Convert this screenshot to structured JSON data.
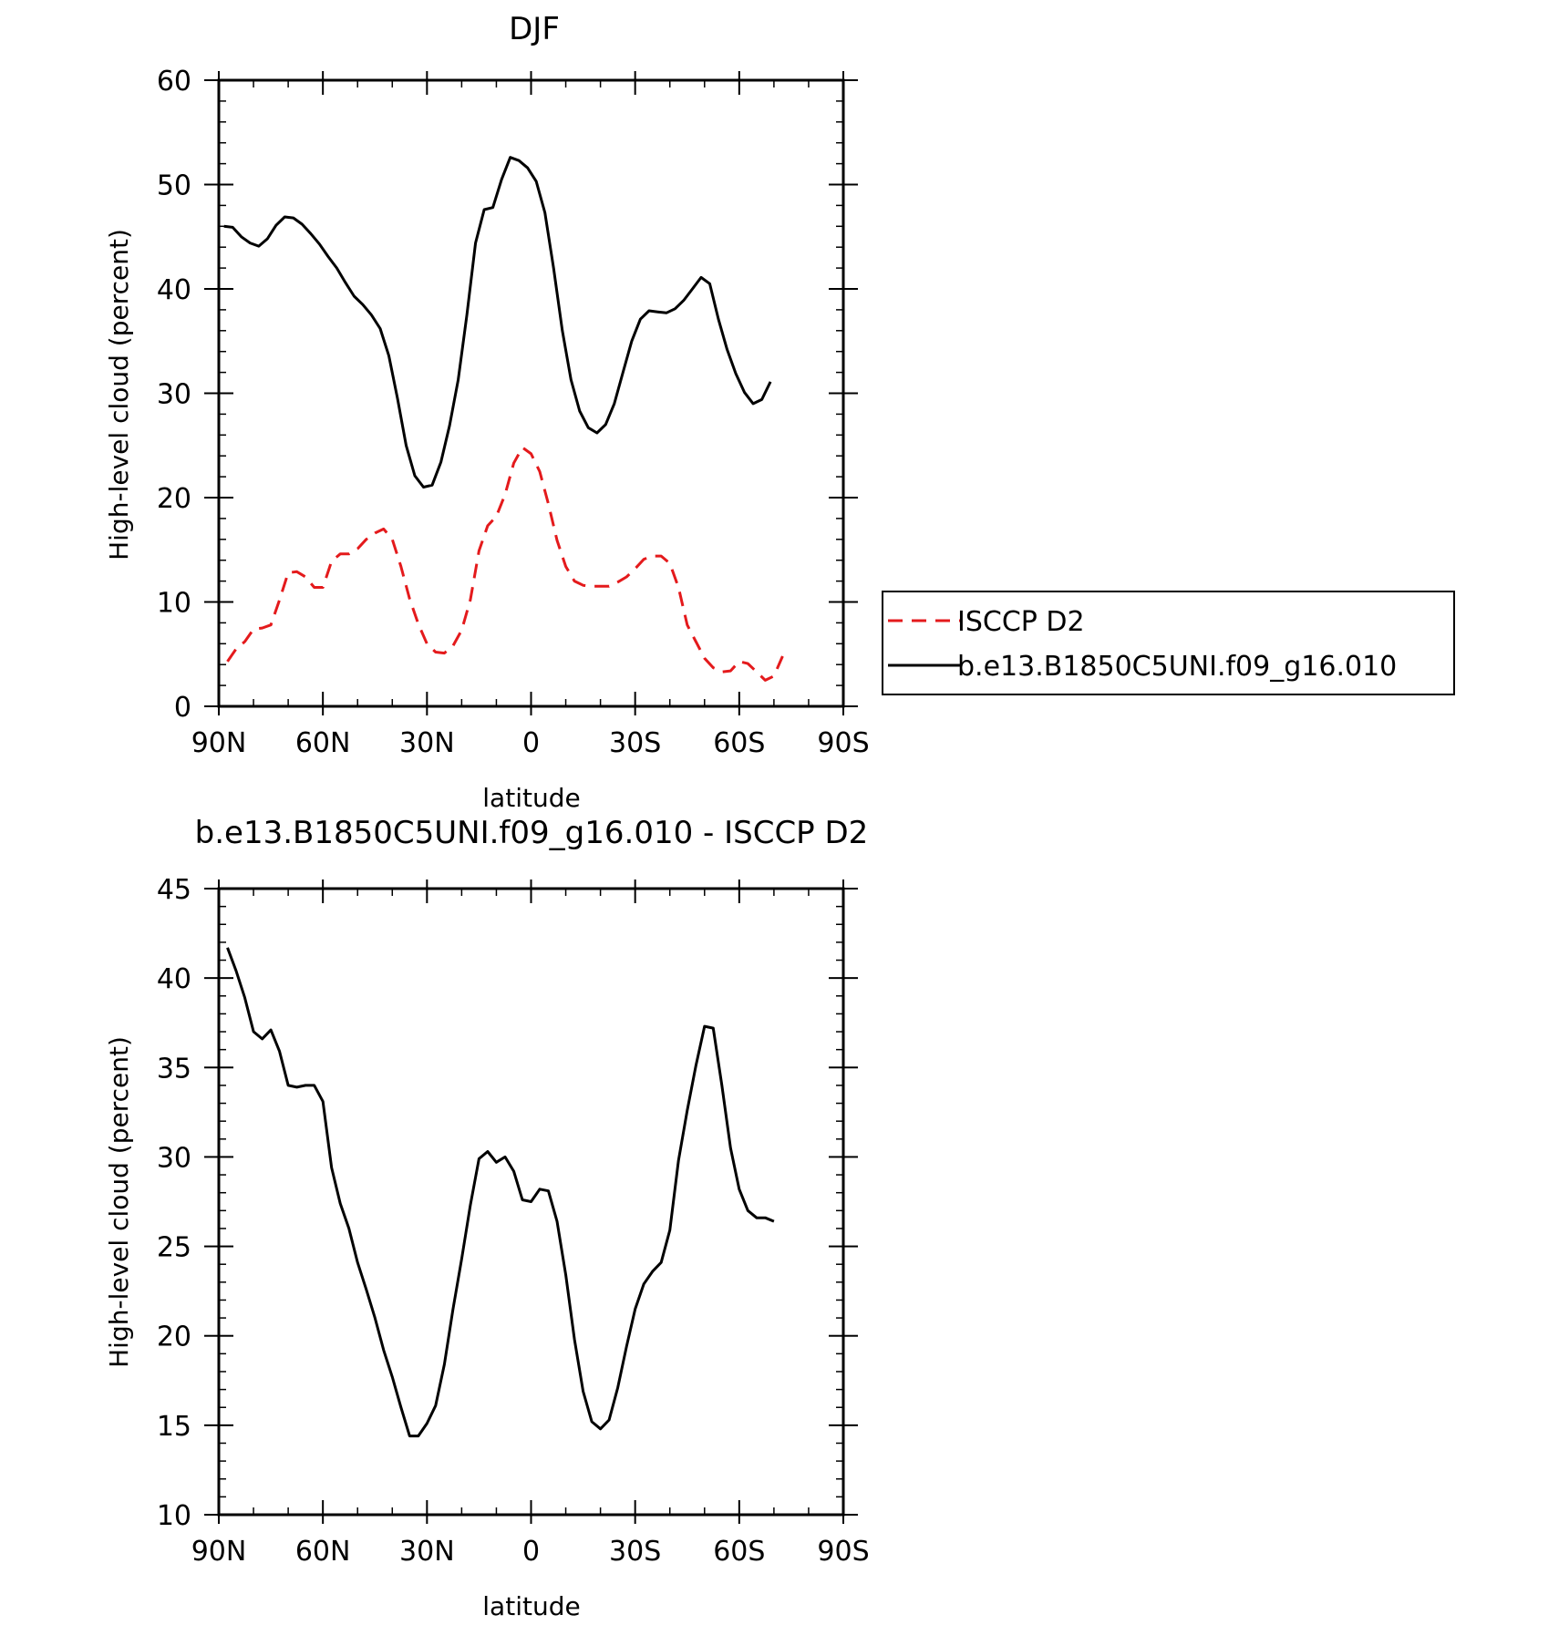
{
  "colors": {
    "model": "#000000",
    "obs": "#e41a1c",
    "frame": "#000000"
  },
  "chart_data": [
    {
      "type": "line",
      "title": "DJF",
      "xlabel": "latitude",
      "ylabel": "High-level cloud (percent)",
      "xlim": [
        -90,
        90
      ],
      "ylim": [
        0,
        60
      ],
      "xticks": [
        -90,
        -60,
        -30,
        0,
        30,
        60,
        90
      ],
      "xtick_labels": [
        "90N",
        "60N",
        "30N",
        "0",
        "30S",
        "60S",
        "90S"
      ],
      "yticks": [
        0,
        10,
        20,
        30,
        40,
        50,
        60
      ],
      "ytick_labels": [
        "0",
        "10",
        "20",
        "30",
        "40",
        "50",
        "60"
      ],
      "legend": {
        "placement": "right",
        "entries": [
          "ISCCP D2",
          "b.e13.B1850C5UNI.f09_g16.010"
        ]
      },
      "series": [
        {
          "name": "ISCCP D2",
          "style": "dashed",
          "color": "#e41a1c",
          "points": [
            [
              -87.5,
              4.3
            ],
            [
              -85,
              5.5
            ],
            [
              -82.5,
              6.2
            ],
            [
              -80,
              7.4
            ],
            [
              -77.5,
              7.5
            ],
            [
              -75,
              7.8
            ],
            [
              -72.5,
              10.2
            ],
            [
              -70,
              12.8
            ],
            [
              -67.5,
              12.9
            ],
            [
              -65,
              12.4
            ],
            [
              -62.5,
              11.4
            ],
            [
              -60,
              11.4
            ],
            [
              -57.5,
              13.9
            ],
            [
              -55,
              14.6
            ],
            [
              -52.5,
              14.6
            ],
            [
              -50,
              15.1
            ],
            [
              -47.5,
              16
            ],
            [
              -45,
              16.6
            ],
            [
              -42.5,
              17
            ],
            [
              -40,
              16
            ],
            [
              -37.5,
              13.4
            ],
            [
              -35,
              10.3
            ],
            [
              -32.5,
              7.9
            ],
            [
              -30,
              6
            ],
            [
              -27.5,
              5.2
            ],
            [
              -25,
              5.1
            ],
            [
              -22.5,
              5.8
            ],
            [
              -20,
              7.3
            ],
            [
              -17.5,
              10.2
            ],
            [
              -15,
              14.9
            ],
            [
              -12.5,
              17.3
            ],
            [
              -10,
              18.2
            ],
            [
              -7.5,
              20.3
            ],
            [
              -5,
              23.3
            ],
            [
              -2.5,
              24.8
            ],
            [
              0,
              24.2
            ],
            [
              2.5,
              22.5
            ],
            [
              5,
              19.4
            ],
            [
              7.5,
              15.9
            ],
            [
              10,
              13.4
            ],
            [
              12.5,
              12
            ],
            [
              15,
              11.6
            ],
            [
              17.5,
              11.5
            ],
            [
              20,
              11.5
            ],
            [
              22.5,
              11.5
            ],
            [
              25,
              11.9
            ],
            [
              27.5,
              12.4
            ],
            [
              30,
              13.2
            ],
            [
              32.5,
              14.1
            ],
            [
              35,
              14.4
            ],
            [
              37.5,
              14.4
            ],
            [
              40,
              13.7
            ],
            [
              42.5,
              11.4
            ],
            [
              45,
              7.8
            ],
            [
              47.5,
              6.2
            ],
            [
              50,
              4.6
            ],
            [
              52.5,
              3.7
            ],
            [
              55,
              3.3
            ],
            [
              57.5,
              3.4
            ],
            [
              60,
              4.3
            ],
            [
              62.5,
              4.1
            ],
            [
              65,
              3.3
            ],
            [
              67.5,
              2.5
            ],
            [
              70,
              2.9
            ],
            [
              72.5,
              4.8
            ]
          ]
        },
        {
          "name": "b.e13.B1850C5UNI.f09_g16.010",
          "style": "solid",
          "color": "#000000",
          "points": [
            [
              -88.5,
              46
            ],
            [
              -86,
              45.9
            ],
            [
              -83.5,
              45
            ],
            [
              -81,
              44.4
            ],
            [
              -78.5,
              44.1
            ],
            [
              -76,
              44.8
            ],
            [
              -73.5,
              46.1
            ],
            [
              -71,
              46.9
            ],
            [
              -68.5,
              46.8
            ],
            [
              -66,
              46.2
            ],
            [
              -63.5,
              45.3
            ],
            [
              -61,
              44.3
            ],
            [
              -58.5,
              43.1
            ],
            [
              -56,
              42
            ],
            [
              -53.5,
              40.6
            ],
            [
              -51,
              39.3
            ],
            [
              -48.5,
              38.5
            ],
            [
              -46,
              37.5
            ],
            [
              -43.5,
              36.2
            ],
            [
              -41,
              33.6
            ],
            [
              -38.5,
              29.5
            ],
            [
              -36,
              25
            ],
            [
              -33.5,
              22.1
            ],
            [
              -31,
              21
            ],
            [
              -28.5,
              21.2
            ],
            [
              -26,
              23.4
            ],
            [
              -23.5,
              26.9
            ],
            [
              -21,
              31.3
            ],
            [
              -18.5,
              37.5
            ],
            [
              -16,
              44.4
            ],
            [
              -13.5,
              47.6
            ],
            [
              -11,
              47.8
            ],
            [
              -8.5,
              50.5
            ],
            [
              -6,
              52.6
            ],
            [
              -3.5,
              52.3
            ],
            [
              -1,
              51.6
            ],
            [
              1.5,
              50.3
            ],
            [
              4,
              47.3
            ],
            [
              6.5,
              42
            ],
            [
              9,
              36
            ],
            [
              11.5,
              31.3
            ],
            [
              14,
              28.3
            ],
            [
              16.5,
              26.7
            ],
            [
              19,
              26.2
            ],
            [
              21.5,
              27
            ],
            [
              24,
              29
            ],
            [
              26.5,
              32
            ],
            [
              29,
              35
            ],
            [
              31.5,
              37.1
            ],
            [
              34,
              37.9
            ],
            [
              36.5,
              37.8
            ],
            [
              39,
              37.7
            ],
            [
              41.5,
              38.1
            ],
            [
              44,
              38.9
            ],
            [
              46.5,
              40
            ],
            [
              49,
              41.1
            ],
            [
              51.5,
              40.5
            ],
            [
              54,
              37.1
            ],
            [
              56.5,
              34.2
            ],
            [
              59,
              31.9
            ],
            [
              61.5,
              30.1
            ],
            [
              64,
              29
            ],
            [
              66.5,
              29.4
            ],
            [
              69,
              31.1
            ]
          ]
        }
      ]
    },
    {
      "type": "line",
      "title": "b.e13.B1850C5UNI.f09_g16.010 - ISCCP D2",
      "xlabel": "latitude",
      "ylabel": "High-level cloud (percent)",
      "xlim": [
        -90,
        90
      ],
      "ylim": [
        10,
        45
      ],
      "xticks": [
        -90,
        -60,
        -30,
        0,
        30,
        60,
        90
      ],
      "xtick_labels": [
        "90N",
        "60N",
        "30N",
        "0",
        "30S",
        "60S",
        "90S"
      ],
      "yticks": [
        10,
        15,
        20,
        25,
        30,
        35,
        40,
        45
      ],
      "ytick_labels": [
        "10",
        "15",
        "20",
        "25",
        "30",
        "35",
        "40",
        "45"
      ],
      "series": [
        {
          "style": "solid",
          "color": "#000000",
          "points": [
            [
              -87.5,
              41.7
            ],
            [
              -85,
              40.4
            ],
            [
              -82.5,
              38.9
            ],
            [
              -80,
              37
            ],
            [
              -77.5,
              36.6
            ],
            [
              -75,
              37.1
            ],
            [
              -72.5,
              35.9
            ],
            [
              -70,
              34
            ],
            [
              -67.5,
              33.9
            ],
            [
              -65,
              34
            ],
            [
              -62.5,
              34
            ],
            [
              -60,
              33.1
            ],
            [
              -57.5,
              29.4
            ],
            [
              -55,
              27.4
            ],
            [
              -52.5,
              26
            ],
            [
              -50,
              24.1
            ],
            [
              -47.5,
              22.6
            ],
            [
              -45,
              21
            ],
            [
              -42.5,
              19.2
            ],
            [
              -40,
              17.7
            ],
            [
              -37.5,
              16
            ],
            [
              -35,
              14.4
            ],
            [
              -32.5,
              14.4
            ],
            [
              -30,
              15.1
            ],
            [
              -27.5,
              16.1
            ],
            [
              -25,
              18.4
            ],
            [
              -22.5,
              21.5
            ],
            [
              -20,
              24.3
            ],
            [
              -17.5,
              27.3
            ],
            [
              -15,
              29.9
            ],
            [
              -12.5,
              30.3
            ],
            [
              -10,
              29.7
            ],
            [
              -7.5,
              30
            ],
            [
              -5,
              29.2
            ],
            [
              -2.5,
              27.6
            ],
            [
              0,
              27.5
            ],
            [
              2.5,
              28.2
            ],
            [
              5,
              28.1
            ],
            [
              7.5,
              26.4
            ],
            [
              10,
              23.4
            ],
            [
              12.5,
              19.8
            ],
            [
              15,
              16.9
            ],
            [
              17.5,
              15.2
            ],
            [
              20,
              14.8
            ],
            [
              22.5,
              15.3
            ],
            [
              25,
              17.1
            ],
            [
              27.5,
              19.4
            ],
            [
              30,
              21.5
            ],
            [
              32.5,
              22.9
            ],
            [
              35,
              23.6
            ],
            [
              37.5,
              24.1
            ],
            [
              40,
              25.9
            ],
            [
              42.5,
              29.8
            ],
            [
              45,
              32.6
            ],
            [
              47.5,
              35.1
            ],
            [
              50,
              37.3
            ],
            [
              52.5,
              37.2
            ],
            [
              55,
              34
            ],
            [
              57.5,
              30.5
            ],
            [
              60,
              28.2
            ],
            [
              62.5,
              27
            ],
            [
              65,
              26.6
            ],
            [
              67.5,
              26.6
            ],
            [
              70,
              26.4
            ]
          ]
        }
      ]
    }
  ]
}
